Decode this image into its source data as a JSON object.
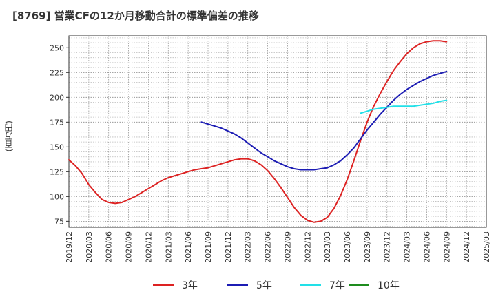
{
  "chart_data": {
    "type": "line",
    "title": "[8769]  営業CFの12か月移動合計の標準偏差の推移",
    "ylabel": "(百万円)",
    "xlabel": "",
    "x_ticks": [
      "2019/12",
      "2020/03",
      "2020/06",
      "2020/09",
      "2020/12",
      "2021/03",
      "2021/06",
      "2021/09",
      "2021/12",
      "2022/03",
      "2022/06",
      "2022/09",
      "2022/12",
      "2023/03",
      "2023/06",
      "2023/09",
      "2023/12",
      "2024/03",
      "2024/06",
      "2024/09",
      "2024/12",
      "2025/03"
    ],
    "y_ticks": [
      75,
      100,
      125,
      150,
      175,
      200,
      225,
      250
    ],
    "ylim": [
      69,
      262
    ],
    "grid": true,
    "legend_position": "bottom",
    "series": [
      {
        "name": "3年",
        "color": "#dd2222",
        "x": [
          "2019/12",
          "2020/01",
          "2020/02",
          "2020/03",
          "2020/04",
          "2020/05",
          "2020/06",
          "2020/07",
          "2020/08",
          "2020/09",
          "2020/10",
          "2020/11",
          "2020/12",
          "2021/01",
          "2021/02",
          "2021/03",
          "2021/04",
          "2021/05",
          "2021/06",
          "2021/07",
          "2021/08",
          "2021/09",
          "2021/10",
          "2021/11",
          "2021/12",
          "2022/01",
          "2022/02",
          "2022/03",
          "2022/04",
          "2022/05",
          "2022/06",
          "2022/07",
          "2022/08",
          "2022/09",
          "2022/10",
          "2022/11",
          "2022/12",
          "2023/01",
          "2023/02",
          "2023/03",
          "2023/04",
          "2023/05",
          "2023/06",
          "2023/07",
          "2023/08",
          "2023/09",
          "2023/10",
          "2023/11",
          "2023/12",
          "2024/01",
          "2024/02",
          "2024/03",
          "2024/04",
          "2024/05",
          "2024/06",
          "2024/07",
          "2024/08",
          "2024/09"
        ],
        "values": [
          137,
          131,
          123,
          112,
          104,
          97,
          94,
          93,
          94,
          97,
          100,
          104,
          108,
          112,
          116,
          119,
          121,
          123,
          125,
          127,
          128,
          129,
          131,
          133,
          135,
          137,
          138,
          138,
          136,
          132,
          126,
          118,
          109,
          99,
          89,
          81,
          76,
          74,
          75,
          79,
          88,
          101,
          117,
          136,
          156,
          175,
          191,
          204,
          216,
          227,
          236,
          244,
          250,
          254,
          256,
          257,
          257,
          256
        ]
      },
      {
        "name": "5年",
        "color": "#1c1cb4",
        "x": [
          "2021/08",
          "2021/09",
          "2021/10",
          "2021/11",
          "2021/12",
          "2022/01",
          "2022/02",
          "2022/03",
          "2022/04",
          "2022/05",
          "2022/06",
          "2022/07",
          "2022/08",
          "2022/09",
          "2022/10",
          "2022/11",
          "2022/12",
          "2023/01",
          "2023/02",
          "2023/03",
          "2023/04",
          "2023/05",
          "2023/06",
          "2023/07",
          "2023/08",
          "2023/09",
          "2023/10",
          "2023/11",
          "2023/12",
          "2024/01",
          "2024/02",
          "2024/03",
          "2024/04",
          "2024/05",
          "2024/06",
          "2024/07",
          "2024/08",
          "2024/09"
        ],
        "values": [
          175,
          173,
          171,
          169,
          166,
          163,
          159,
          154,
          149,
          144,
          140,
          136,
          133,
          130,
          128,
          127,
          127,
          127,
          128,
          129,
          132,
          136,
          142,
          149,
          158,
          167,
          175,
          183,
          190,
          197,
          203,
          208,
          212,
          216,
          219,
          222,
          224,
          226
        ]
      },
      {
        "name": "7年",
        "color": "#22e0e8",
        "x": [
          "2023/08",
          "2023/09",
          "2023/10",
          "2023/11",
          "2023/12",
          "2024/01",
          "2024/02",
          "2024/03",
          "2024/04",
          "2024/05",
          "2024/06",
          "2024/07",
          "2024/08",
          "2024/09"
        ],
        "values": [
          184,
          186,
          188,
          189,
          190,
          191,
          191,
          191,
          191,
          192,
          193,
          194,
          196,
          197
        ]
      },
      {
        "name": "10年",
        "color": "#1e8c1e",
        "x": [],
        "values": []
      }
    ]
  }
}
